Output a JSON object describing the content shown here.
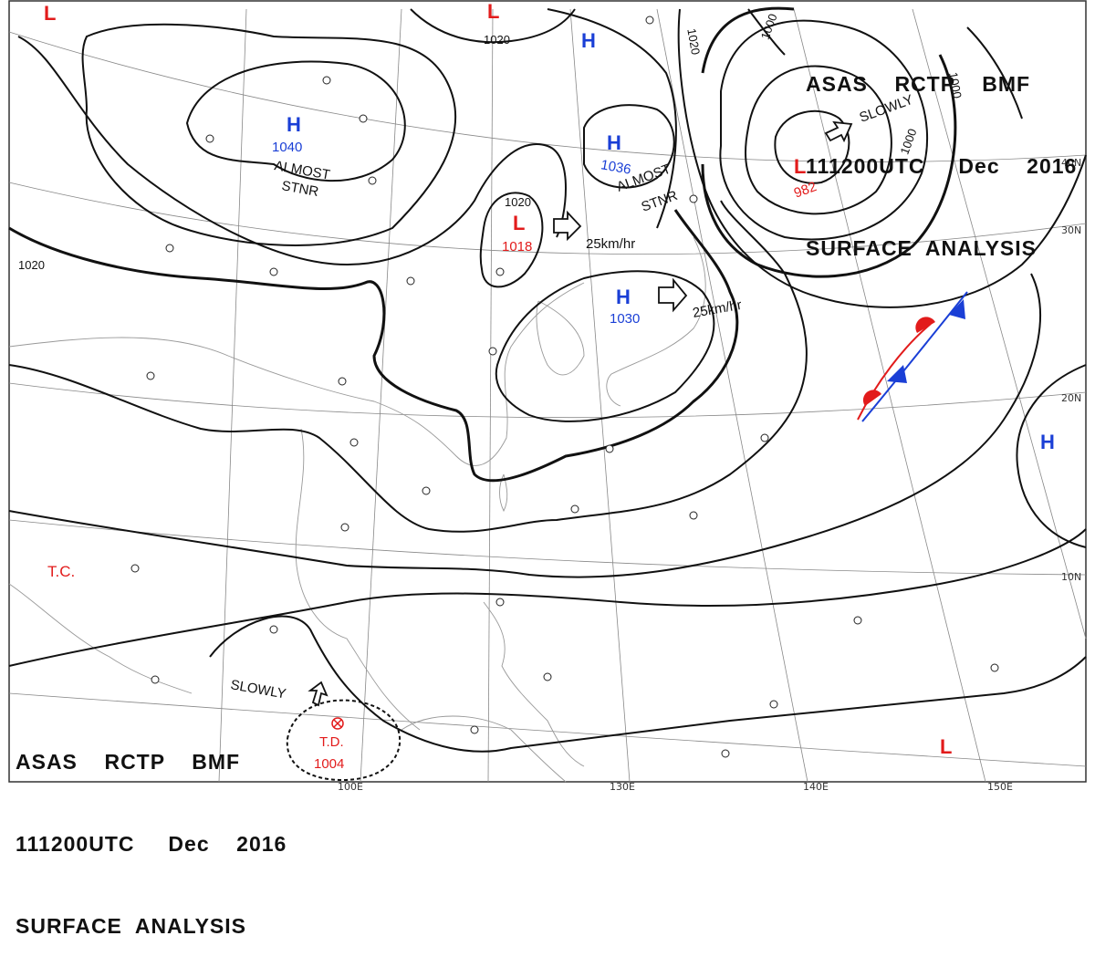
{
  "header_top": {
    "line1": "ASAS    RCTP    BMF",
    "line2": "111200UTC     Dec    2016",
    "line3": "SURFACE  ANALYSIS"
  },
  "header_bottom": {
    "line1": "ASAS    RCTP    BMF",
    "line2": "111200UTC     Dec    2016",
    "line3": "SURFACE  ANALYSIS"
  },
  "pressure_centers": [
    {
      "type": "H",
      "value": "1040",
      "color": "#1a3fd6"
    },
    {
      "type": "H",
      "value": "1036",
      "color": "#1a3fd6"
    },
    {
      "type": "H",
      "value": "1030",
      "color": "#1a3fd6"
    },
    {
      "type": "H",
      "value": "",
      "color": "#1a3fd6"
    },
    {
      "type": "H",
      "value": "",
      "color": "#1a3fd6"
    },
    {
      "type": "L",
      "value": "1018",
      "color": "#e21b1b"
    },
    {
      "type": "L",
      "value": "982",
      "color": "#e21b1b"
    },
    {
      "type": "L",
      "value": "",
      "color": "#e21b1b"
    },
    {
      "type": "L",
      "value": "",
      "color": "#e21b1b"
    },
    {
      "type": "L",
      "value": "",
      "color": "#e21b1b"
    }
  ],
  "isobar_labels": [
    "1020",
    "1020",
    "1020",
    "1020",
    "1000",
    "1000",
    "1000"
  ],
  "motion_labels": [
    "ALMOST",
    "STNR",
    "ALMOST",
    "STNR",
    "25km/hr",
    "25km/hr",
    "SLOWLY",
    "SLOWLY"
  ],
  "tropical": {
    "tc": "T.C.",
    "td_label": "T.D.",
    "td_value": "1004",
    "color": "#e21b1b"
  },
  "latitudes": [
    "40N",
    "30N",
    "20N",
    "10N"
  ],
  "longitudes": [
    "100E",
    "130E",
    "140E",
    "150E"
  ],
  "icons": [
    "front-arrow-icon",
    "station-model-icon",
    "tropical-depression-icon",
    "warm-front-icon",
    "cold-front-icon"
  ]
}
